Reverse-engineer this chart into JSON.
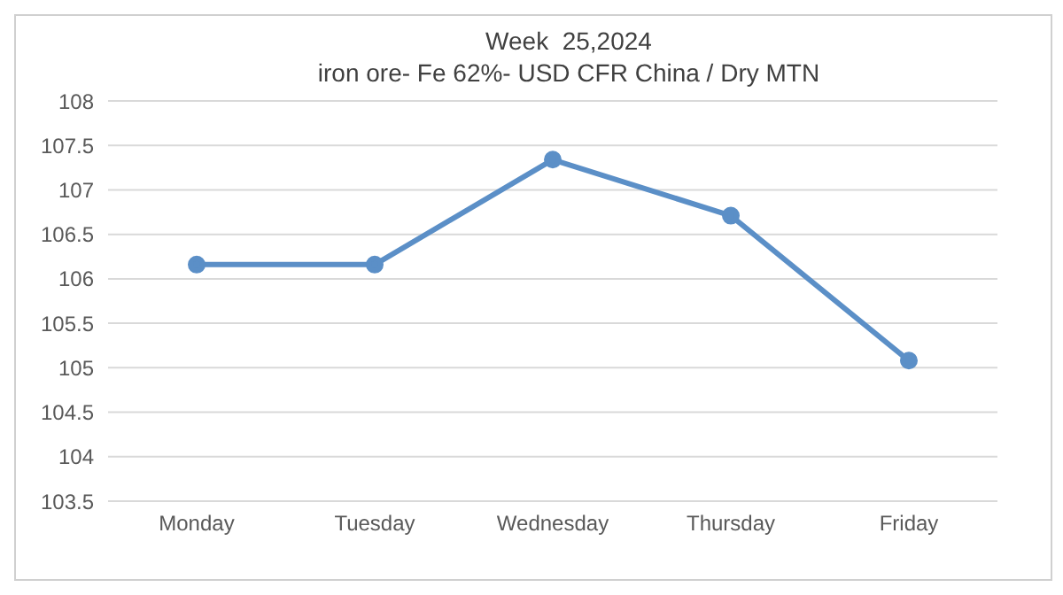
{
  "chart_data": {
    "type": "line",
    "title": "Week  25,2024",
    "subtitle": "iron ore- Fe 62%- USD CFR China / Dry MTN",
    "categories": [
      "Monday",
      "Tuesday",
      "Wednesday",
      "Thursday",
      "Friday"
    ],
    "series": [
      {
        "color": "#5b8fc7",
        "values": [
          106.16,
          106.16,
          107.34,
          106.71,
          105.08
        ]
      }
    ],
    "ylim": [
      103.5,
      108
    ],
    "yticks": [
      103.5,
      104,
      104.5,
      105,
      105.5,
      106,
      106.5,
      107,
      107.5,
      108
    ],
    "grid": "y",
    "marker": "circle"
  }
}
